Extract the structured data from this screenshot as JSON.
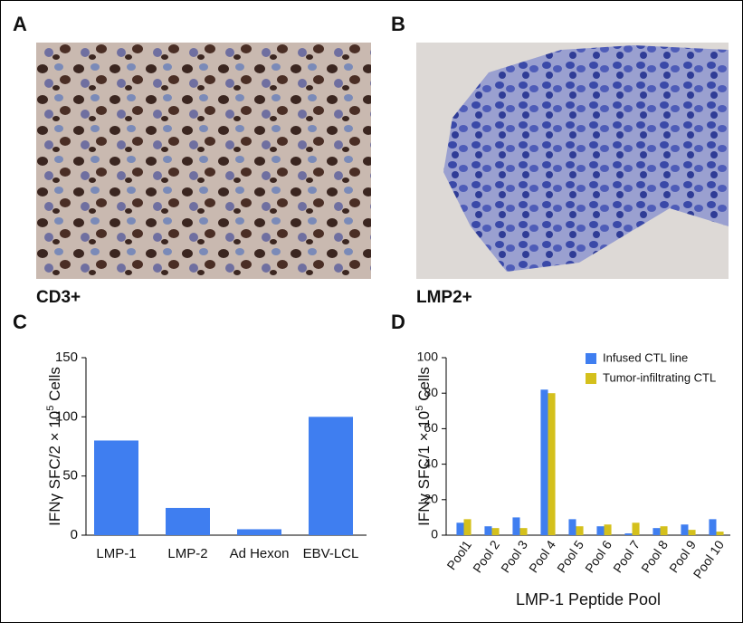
{
  "panels": [
    {
      "label": "A",
      "caption": "CD3+"
    },
    {
      "label": "B",
      "caption": "LMP2+"
    }
  ],
  "chart_data": [
    {
      "type": "bar",
      "label": "C",
      "ylabel": [
        "IFNγ SFC/2 × 10",
        "5",
        " Cells"
      ],
      "categories": [
        "LMP-1",
        "LMP-2",
        "Ad Hexon",
        "EBV-LCL"
      ],
      "values": [
        80,
        23,
        5,
        100
      ],
      "color": "#3f7ef0",
      "ylim": [
        0,
        150
      ],
      "yticks": [
        0,
        50,
        100,
        150
      ]
    },
    {
      "type": "grouped-bar",
      "label": "D",
      "ylabel": [
        "IFNγ SFC/1 × 10",
        "5",
        " Cells"
      ],
      "xlabel": "LMP-1 Peptide Pool",
      "categories": [
        "Pool1",
        "Pool 2",
        "Pool 3",
        "Pool 4",
        "Pool 5",
        "Pool 6",
        "Pool 7",
        "Pool 8",
        "Pool 9",
        "Pool 10"
      ],
      "series": [
        {
          "name": "Infused CTL line",
          "color": "#3f7ef0",
          "values": [
            7,
            5,
            10,
            82,
            9,
            5,
            1,
            4,
            6,
            9
          ]
        },
        {
          "name": "Tumor-infiltrating CTL",
          "color": "#d4c01c",
          "values": [
            9,
            4,
            4,
            80,
            5,
            6,
            7,
            5,
            3,
            2
          ]
        }
      ],
      "ylim": [
        0,
        100
      ],
      "yticks": [
        0,
        20,
        40,
        60,
        80,
        100
      ],
      "legend": "upper right"
    }
  ]
}
